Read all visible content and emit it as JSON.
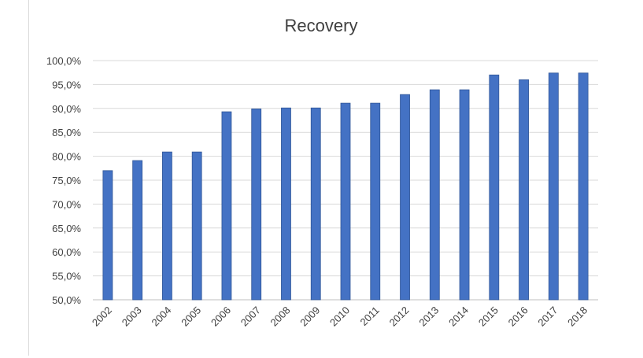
{
  "chart_data": {
    "type": "bar",
    "title": "Recovery",
    "xlabel": "",
    "ylabel": "",
    "categories": [
      "2002",
      "2003",
      "2004",
      "2005",
      "2006",
      "2007",
      "2008",
      "2009",
      "2010",
      "2011",
      "2012",
      "2013",
      "2014",
      "2015",
      "2016",
      "2017",
      "2018"
    ],
    "values": [
      77.0,
      79.1,
      80.9,
      80.9,
      89.3,
      89.9,
      90.1,
      90.1,
      91.1,
      91.1,
      92.9,
      93.9,
      93.9,
      97.0,
      96.0,
      97.4,
      97.4
    ],
    "ylim": [
      50,
      100
    ],
    "yticks": [
      "50,0%",
      "55,0%",
      "60,0%",
      "65,0%",
      "70,0%",
      "75,0%",
      "80,0%",
      "85,0%",
      "90,0%",
      "95,0%",
      "100,0%"
    ],
    "grid": true,
    "legend": "none",
    "colors": {
      "bar": "#4472c4",
      "bar_edge": "#2f5597",
      "grid": "#d9d9d9",
      "text": "#404040"
    }
  }
}
